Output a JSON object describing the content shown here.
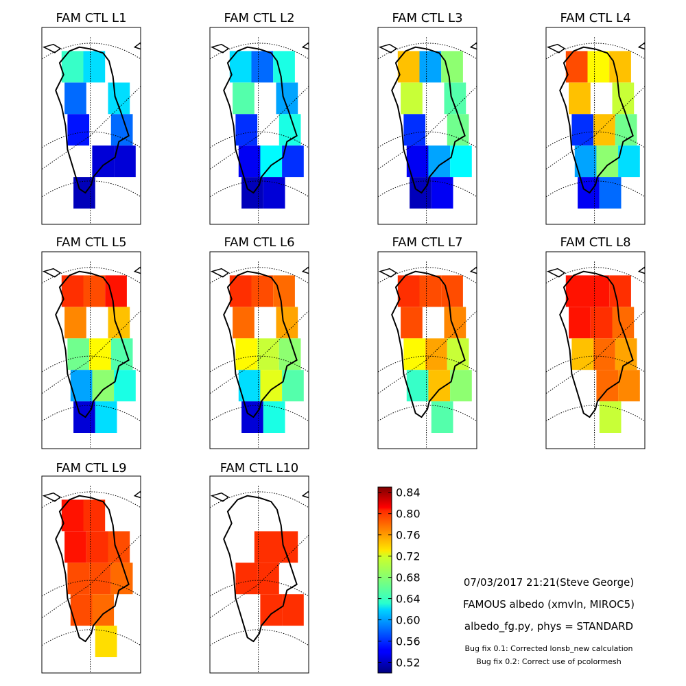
{
  "chart_data": {
    "type": "heatmap",
    "colormap": "jet",
    "vmin": 0.5,
    "vmax": 0.85,
    "colorbar_ticks": [
      "0.84",
      "0.80",
      "0.76",
      "0.72",
      "0.68",
      "0.64",
      "0.60",
      "0.56",
      "0.52"
    ],
    "colorbar_tick_values": [
      0.84,
      0.8,
      0.76,
      0.72,
      0.68,
      0.64,
      0.6,
      0.56,
      0.52
    ],
    "grid_columns": 3,
    "grid_rows": 5,
    "panels": [
      {
        "title": "FAM CTL L1",
        "cells": [
          [
            0.65,
            0.62,
            null
          ],
          [
            0.58,
            null,
            0.62
          ],
          [
            0.55,
            null,
            0.58
          ],
          [
            null,
            0.53,
            0.53
          ],
          [
            0.52,
            null,
            null
          ]
        ]
      },
      {
        "title": "FAM CTL L2",
        "cells": [
          [
            0.62,
            0.58,
            0.64
          ],
          [
            0.66,
            null,
            0.6
          ],
          [
            0.56,
            null,
            0.64
          ],
          [
            0.54,
            0.63,
            0.56
          ],
          [
            0.52,
            0.53,
            null
          ]
        ]
      },
      {
        "title": "FAM CTL L3",
        "cells": [
          [
            0.74,
            0.6,
            0.68
          ],
          [
            0.7,
            null,
            0.66
          ],
          [
            0.56,
            null,
            0.67
          ],
          [
            0.54,
            0.6,
            0.63
          ],
          [
            0.52,
            0.54,
            null
          ]
        ]
      },
      {
        "title": "FAM CTL L4",
        "cells": [
          [
            0.78,
            0.72,
            0.74
          ],
          [
            0.74,
            null,
            0.7
          ],
          [
            0.56,
            0.74,
            0.67
          ],
          [
            0.6,
            0.68,
            0.62
          ],
          [
            0.54,
            0.58,
            null
          ]
        ]
      },
      {
        "title": "FAM CTL L5",
        "cells": [
          [
            0.79,
            0.78,
            0.8
          ],
          [
            0.76,
            null,
            0.74
          ],
          [
            0.67,
            0.72,
            0.66
          ],
          [
            0.6,
            0.68,
            0.64
          ],
          [
            0.53,
            0.62,
            null
          ]
        ]
      },
      {
        "title": "FAM CTL L6",
        "cells": [
          [
            0.79,
            0.78,
            0.77
          ],
          [
            0.77,
            null,
            0.75
          ],
          [
            0.72,
            0.7,
            0.68
          ],
          [
            0.62,
            0.71,
            0.66
          ],
          [
            0.53,
            0.64,
            null
          ]
        ]
      },
      {
        "title": "FAM CTL L7",
        "cells": [
          [
            0.79,
            0.78,
            0.78
          ],
          [
            0.78,
            null,
            0.76
          ],
          [
            0.72,
            0.75,
            0.7
          ],
          [
            0.65,
            0.74,
            0.68
          ],
          [
            null,
            0.66,
            null
          ]
        ]
      },
      {
        "title": "FAM CTL L8",
        "cells": [
          [
            0.8,
            0.8,
            0.79
          ],
          [
            0.8,
            0.79,
            0.77
          ],
          [
            0.74,
            0.77,
            0.75
          ],
          [
            null,
            0.77,
            0.76
          ],
          [
            null,
            0.7,
            null
          ]
        ]
      },
      {
        "title": "FAM CTL L9",
        "cells": [
          [
            0.8,
            0.79,
            null
          ],
          [
            0.8,
            0.79,
            0.78
          ],
          [
            0.78,
            0.78,
            0.77
          ],
          [
            0.78,
            0.77,
            null
          ],
          [
            null,
            0.73,
            null
          ]
        ]
      },
      {
        "title": "FAM CTL L10",
        "cells": [
          [
            null,
            null,
            null
          ],
          [
            null,
            0.79,
            0.79
          ],
          [
            0.79,
            0.79,
            null
          ],
          [
            null,
            0.79,
            0.79
          ],
          [
            null,
            null,
            null
          ]
        ]
      }
    ]
  },
  "metadata": {
    "timestamp": "07/03/2017 21:21(Steve George)",
    "description": "FAMOUS albedo (xmvln, MIROC5)",
    "script": "albedo_fg.py, phys = STANDARD",
    "bugfix1": "Bug fix 0.1: Corrected lonsb_new calculation",
    "bugfix2": "Bug fix 0.2: Correct use of pcolormesh"
  }
}
